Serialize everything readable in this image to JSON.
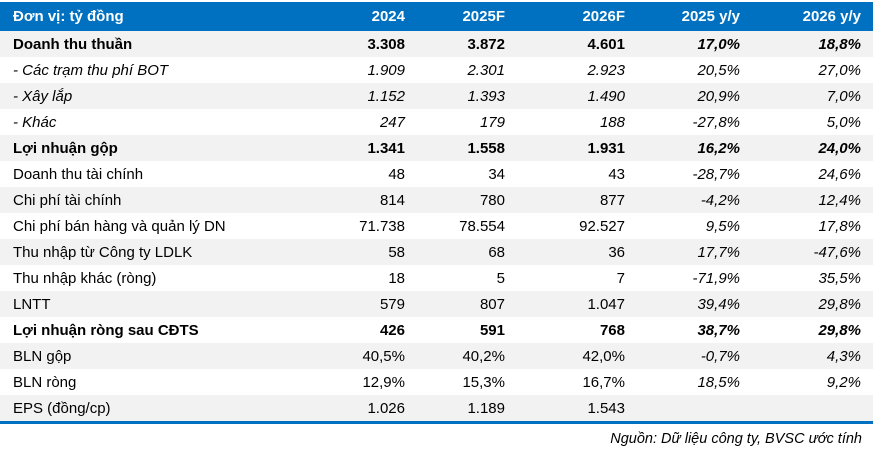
{
  "table": {
    "unit_label": "Đơn vị: tỷ đồng",
    "columns": [
      "2024",
      "2025F",
      "2026F",
      "2025 y/y",
      "2026 y/y"
    ],
    "rows": [
      {
        "label": "Doanh thu thuần",
        "style": "bold",
        "values": [
          "3.308",
          "3.872",
          "4.601",
          "17,0%",
          "18,8%"
        ]
      },
      {
        "label": "- Các trạm thu phí BOT",
        "style": "italic",
        "values": [
          "1.909",
          "2.301",
          "2.923",
          "20,5%",
          "27,0%"
        ]
      },
      {
        "label": "- Xây lắp",
        "style": "italic",
        "values": [
          "1.152",
          "1.393",
          "1.490",
          "20,9%",
          "7,0%"
        ]
      },
      {
        "label": "- Khác",
        "style": "italic",
        "values": [
          "247",
          "179",
          "188",
          "-27,8%",
          "5,0%"
        ]
      },
      {
        "label": "Lợi nhuận gộp",
        "style": "bold",
        "values": [
          "1.341",
          "1.558",
          "1.931",
          "16,2%",
          "24,0%"
        ]
      },
      {
        "label": "Doanh thu tài chính",
        "style": "regular",
        "values": [
          "48",
          "34",
          "43",
          "-28,7%",
          "24,6%"
        ]
      },
      {
        "label": "Chi phí tài chính",
        "style": "regular",
        "values": [
          "814",
          "780",
          "877",
          "-4,2%",
          "12,4%"
        ]
      },
      {
        "label": "Chi phí bán hàng và quản lý DN",
        "style": "regular",
        "values": [
          "71.738",
          "78.554",
          "92.527",
          "9,5%",
          "17,8%"
        ]
      },
      {
        "label": "Thu nhập từ Công ty LDLK",
        "style": "regular",
        "values": [
          "58",
          "68",
          "36",
          "17,7%",
          "-47,6%"
        ]
      },
      {
        "label": "Thu nhập khác (ròng)",
        "style": "regular",
        "values": [
          "18",
          "5",
          "7",
          "-71,9%",
          "35,5%"
        ]
      },
      {
        "label": "LNTT",
        "style": "regular",
        "values": [
          "579",
          "807",
          "1.047",
          "39,4%",
          "29,8%"
        ]
      },
      {
        "label": "Lợi nhuận ròng sau CĐTS",
        "style": "bold",
        "values": [
          "426",
          "591",
          "768",
          "38,7%",
          "29,8%"
        ]
      },
      {
        "label": "BLN gộp",
        "style": "regular",
        "values": [
          "40,5%",
          "40,2%",
          "42,0%",
          "-0,7%",
          "4,3%"
        ]
      },
      {
        "label": "BLN ròng",
        "style": "regular",
        "values": [
          "12,9%",
          "15,3%",
          "16,7%",
          "18,5%",
          "9,2%"
        ]
      },
      {
        "label": "EPS (đồng/cp)",
        "style": "regular",
        "values": [
          "1.026",
          "1.189",
          "1.543",
          "",
          ""
        ]
      }
    ]
  },
  "footer": {
    "source": "Nguồn: Dữ liệu công ty, BVSC ước tính"
  },
  "colors": {
    "header_bg": "#0070C0",
    "header_text": "#FFFFFF",
    "row_alt_bg": "#F2F2F2",
    "text": "#000000",
    "bottom_rule": "#0070C0"
  }
}
